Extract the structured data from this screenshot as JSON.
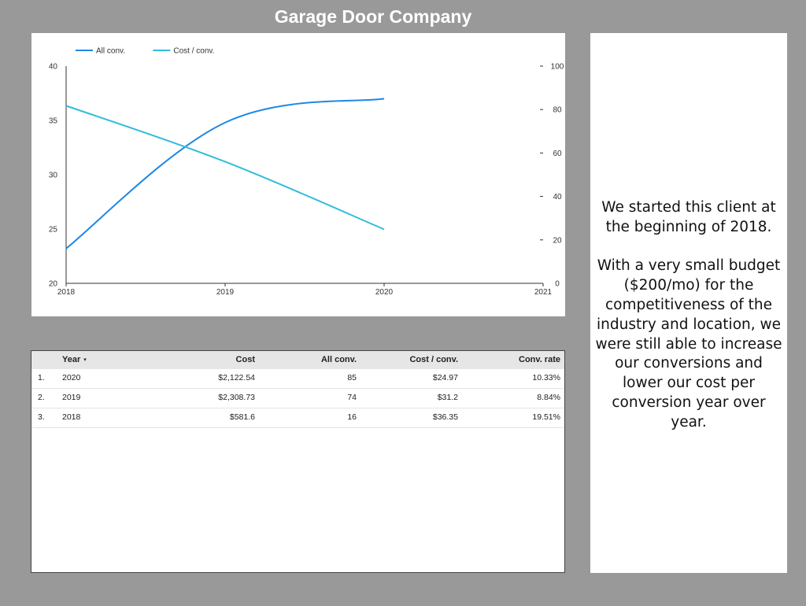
{
  "page": {
    "title": "Garage Door Company"
  },
  "chart_data": {
    "type": "line",
    "x": [
      2018,
      2019,
      2020
    ],
    "x_ticks": [
      "2018",
      "2019",
      "2020",
      "2021"
    ],
    "xlim": [
      2018,
      2021
    ],
    "series": [
      {
        "name": "All conv.",
        "axis": "right",
        "color": "#1e88e5",
        "values": [
          16,
          74,
          85
        ]
      },
      {
        "name": "Cost / conv.",
        "axis": "left",
        "color": "#33bbdd",
        "values": [
          36.35,
          31.2,
          24.97
        ]
      }
    ],
    "y_left": {
      "ylim": [
        20,
        40
      ],
      "ticks": [
        "20",
        "25",
        "30",
        "35",
        "40"
      ]
    },
    "y_right": {
      "ylim": [
        0,
        100
      ],
      "ticks": [
        "0",
        "20",
        "40",
        "60",
        "80",
        "100"
      ]
    },
    "legend_position": "top-left",
    "grid": false
  },
  "table": {
    "headers": [
      "Year",
      "Cost",
      "All conv.",
      "Cost / conv.",
      "Conv. rate"
    ],
    "sort_indicator": "▾",
    "rows": [
      {
        "index": "1.",
        "year": "2020",
        "cost": "$2,122.54",
        "conv": "85",
        "cost_per_conv": "$24.97",
        "conv_rate": "10.33%"
      },
      {
        "index": "2.",
        "year": "2019",
        "cost": "$2,308.73",
        "conv": "74",
        "cost_per_conv": "$31.2",
        "conv_rate": "8.84%"
      },
      {
        "index": "3.",
        "year": "2018",
        "cost": "$581.6",
        "conv": "16",
        "cost_per_conv": "$36.35",
        "conv_rate": "19.51%"
      }
    ]
  },
  "note": {
    "paragraph1": "We started this client at the beginning of 2018.",
    "paragraph2": "With a very small budget ($200/mo) for the competitiveness of the industry and location, we were still able to increase our conversions and lower our cost per conversion year over year."
  }
}
